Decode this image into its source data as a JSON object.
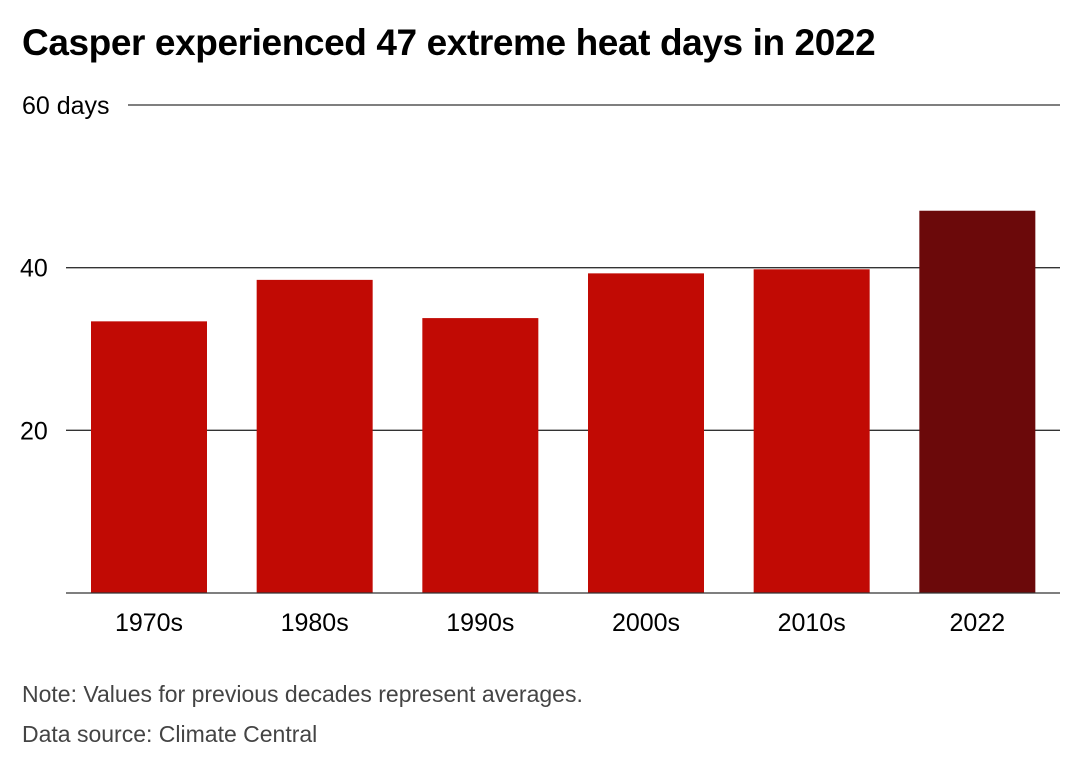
{
  "title": "Casper experienced 47 extreme heat days in 2022",
  "note": "Note: Values for previous decades represent averages.",
  "source": "Data source: Climate Central",
  "colors": {
    "decade_bar": "#c10a04",
    "highlight_bar": "#6b090a",
    "gridline": "#333333",
    "axis_text": "#000000"
  },
  "chart_data": {
    "type": "bar",
    "categories": [
      "1970s",
      "1980s",
      "1990s",
      "2000s",
      "2010s",
      "2022"
    ],
    "values": [
      33.4,
      38.5,
      33.8,
      39.3,
      39.8,
      47
    ],
    "highlight_index": 5,
    "ylim": [
      0,
      60
    ],
    "y_ticks": [
      {
        "value": 20,
        "label": "20"
      },
      {
        "value": 40,
        "label": "40"
      },
      {
        "value": 60,
        "label": "60 days"
      }
    ],
    "grid": true,
    "legend": "none"
  }
}
